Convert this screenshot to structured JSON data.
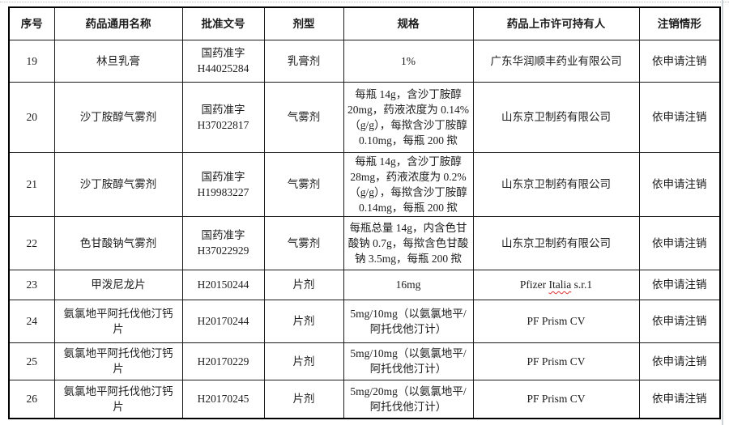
{
  "document": {
    "table": {
      "columns": [
        {
          "key": "serial",
          "label": "序号"
        },
        {
          "key": "name",
          "label": "药品通用名称"
        },
        {
          "key": "approval",
          "label": "批准文号"
        },
        {
          "key": "form",
          "label": "剂型"
        },
        {
          "key": "spec",
          "label": "规格"
        },
        {
          "key": "holder",
          "label": "药品上市许可持有人"
        },
        {
          "key": "status",
          "label": "注销情形"
        }
      ],
      "rows": [
        {
          "serial": "19",
          "name": "林旦乳膏",
          "approval": "国药准字\nH44025284",
          "form": "乳膏剂",
          "spec": "1%",
          "holder": "广东华润顺丰药业有限公司",
          "status": "依申请注销"
        },
        {
          "serial": "20",
          "name": "沙丁胺醇气雾剂",
          "approval": "国药准字\nH37022817",
          "form": "气雾剂",
          "spec": "每瓶 14g，含沙丁胺醇\n20mg，药液浓度为 0.14%\n（g/g），每揿含沙丁胺醇\n0.10mg，每瓶 200 揿",
          "holder": "山东京卫制药有限公司",
          "status": "依申请注销"
        },
        {
          "serial": "21",
          "name": "沙丁胺醇气雾剂",
          "approval": "国药准字\nH19983227",
          "form": "气雾剂",
          "spec": "每瓶 14g，含沙丁胺醇\n28mg，药液浓度为 0.2%\n（g/g），每揿含沙丁胺醇\n0.14mg，每瓶 200 揿",
          "holder": "山东京卫制药有限公司",
          "status": "依申请注销"
        },
        {
          "serial": "22",
          "name": "色甘酸钠气雾剂",
          "approval": "国药准字\nH37022929",
          "form": "气雾剂",
          "spec": "每瓶总量 14g，内含色甘\n酸钠 0.7g，每揿含色甘酸\n钠 3.5mg，每瓶 200 揿",
          "holder": "山东京卫制药有限公司",
          "status": "依申请注销"
        },
        {
          "serial": "23",
          "name": "甲泼尼龙片",
          "approval": "H20150244",
          "form": "片剂",
          "spec": "16mg",
          "holder": "Pfizer Italia s.r.1",
          "holder_misspelled": "Italia",
          "status": "依申请注销"
        },
        {
          "serial": "24",
          "name": "氨氯地平阿托伐他汀钙\n片",
          "approval": "H20170244",
          "form": "片剂",
          "spec": "5mg/10mg（以氨氯地平/\n阿托伐他汀计）",
          "holder": "PF Prism CV",
          "status": "依申请注销"
        },
        {
          "serial": "25",
          "name": "氨氯地平阿托伐他汀钙\n片",
          "approval": "H20170229",
          "form": "片剂",
          "spec": "5mg/10mg（以氨氯地平/\n阿托伐他汀计）",
          "holder": "PF Prism CV",
          "status": "依申请注销"
        },
        {
          "serial": "26",
          "name": "氨氯地平阿托伐他汀钙\n片",
          "approval": "H20170245",
          "form": "片剂",
          "spec": "5mg/20mg（以氨氯地平/\n阿托伐他汀计）",
          "holder": "PF Prism CV",
          "status": "依申请注销"
        }
      ]
    }
  }
}
